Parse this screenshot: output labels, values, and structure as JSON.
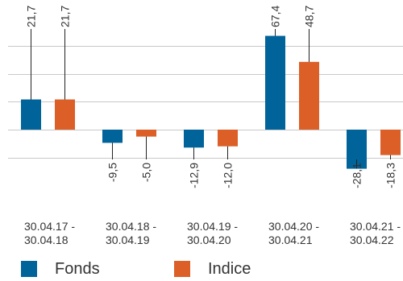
{
  "chart_data": {
    "type": "bar",
    "categories": [
      [
        "30.04.17 -",
        "30.04.18"
      ],
      [
        "30.04.18 -",
        "30.04.19"
      ],
      [
        "30.04.19 -",
        "30.04.20"
      ],
      [
        "30.04.20 -",
        "30.04.21"
      ],
      [
        "30.04.21 -",
        "30.04.22"
      ]
    ],
    "series": [
      {
        "name": "Fonds",
        "color": "#00639a",
        "values": [
          21.7,
          -9.5,
          -12.9,
          67.4,
          -28.1
        ],
        "labels": [
          "21,7",
          "-9,5",
          "-12,9",
          "67,4",
          "-28,1"
        ]
      },
      {
        "name": "Indice",
        "color": "#db5f27",
        "values": [
          21.7,
          -5.0,
          -12.0,
          48.7,
          -18.3
        ],
        "labels": [
          "21,7",
          "-5,0",
          "-12,0",
          "48,7",
          "-18,3"
        ]
      }
    ],
    "ylim": [
      -30,
      70
    ],
    "gridlines": [
      -20,
      0,
      20,
      40,
      60
    ],
    "grid": true,
    "legend_position": "bottom-left"
  }
}
